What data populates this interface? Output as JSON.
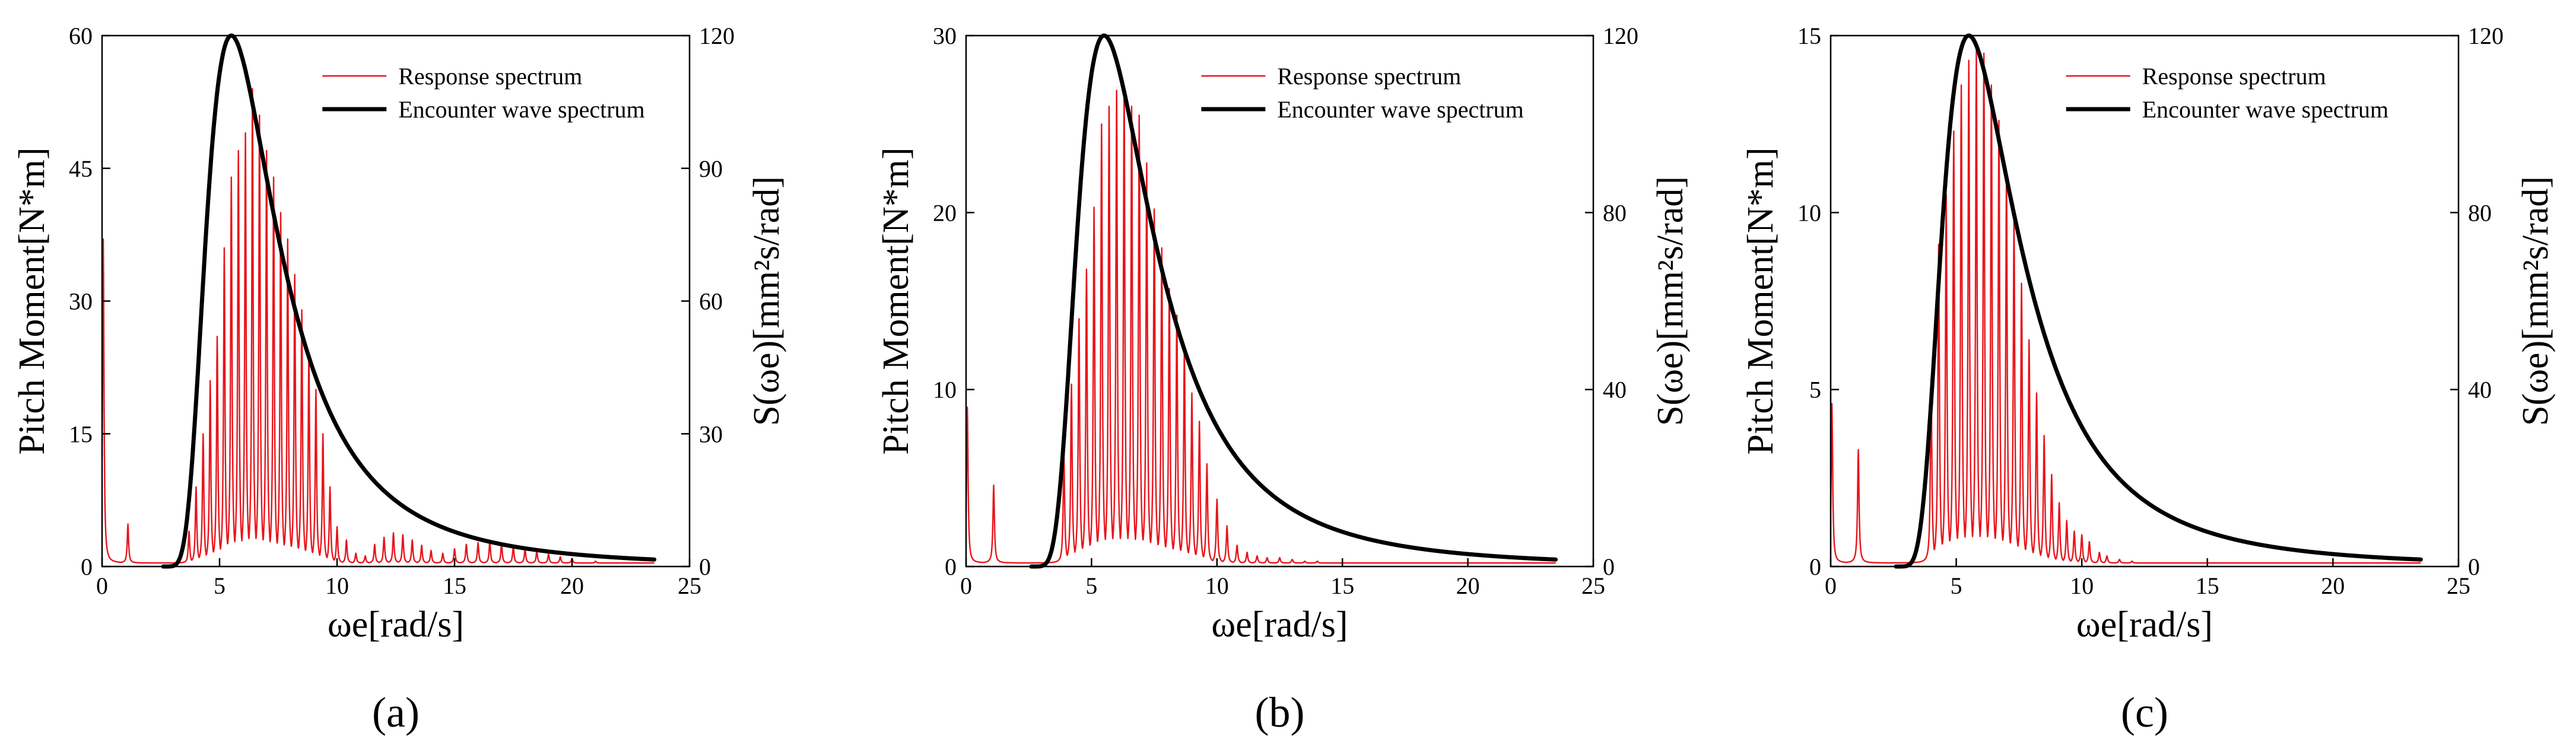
{
  "figure_labels": [
    "(a)",
    "(b)",
    "(c)"
  ],
  "chart_data": [
    {
      "type": "line",
      "panel_label": "(a)",
      "xlabel": "ωe[rad/s]",
      "ylabel": "Pitch Moment[N*m]",
      "y2label": "S(ωe)[mm²s/rad]",
      "xlim": [
        0,
        25
      ],
      "ylim": [
        0,
        60
      ],
      "y2lim": [
        0,
        120
      ],
      "xticks": [
        0,
        5,
        10,
        15,
        20,
        25
      ],
      "yticks": [
        0,
        15,
        30,
        45,
        60
      ],
      "y2ticks": [
        0,
        30,
        60,
        90,
        120
      ],
      "legend": [
        "Response spectrum",
        "Encounter wave spectrum"
      ],
      "legend_position": "top-right",
      "colors": {
        "response": "#e8141b",
        "encounter": "#000000"
      },
      "response_peaks": {
        "x": [
          0.05,
          1.1,
          3.7,
          4.0,
          4.3,
          4.6,
          4.9,
          5.2,
          5.5,
          5.8,
          6.1,
          6.4,
          6.7,
          7.0,
          7.3,
          7.6,
          7.9,
          8.2,
          8.5,
          8.8,
          9.1,
          9.4,
          9.7,
          10.0,
          10.4,
          10.8,
          11.2,
          11.6,
          12.0,
          12.4,
          12.8,
          13.2,
          13.6,
          14.0,
          14.5,
          15.0,
          15.5,
          16.0,
          16.5,
          17.0,
          17.5,
          18.0,
          18.5,
          19.0,
          19.5,
          20.0,
          21.0,
          22.0
        ],
        "y": [
          37,
          4.8,
          4,
          9,
          15,
          21,
          26,
          36,
          44,
          47,
          49,
          54,
          51,
          47,
          44,
          40,
          37,
          33,
          29,
          24,
          20,
          15,
          9,
          4.5,
          3,
          1.5,
          1.2,
          2.5,
          3.3,
          3.8,
          3.6,
          3,
          2.4,
          1.8,
          1.5,
          2,
          2.5,
          2.7,
          2.8,
          2.6,
          2.3,
          2,
          1.7,
          1.4,
          1.1,
          0.9,
          0.6,
          0.4
        ],
        "baseline": 0.4
      },
      "encounter_spectrum": {
        "peak_x": 5.5,
        "peak_y": 120,
        "x_start": 2.6,
        "x_end": 23.5
      }
    },
    {
      "type": "line",
      "panel_label": "(b)",
      "xlabel": "ωe[rad/s]",
      "ylabel": "Pitch Moment[N*m]",
      "y2label": "S(ωe)[mm²s/rad]",
      "xlim": [
        0,
        25
      ],
      "ylim": [
        0,
        30
      ],
      "y2lim": [
        0,
        120
      ],
      "xticks": [
        0,
        5,
        10,
        15,
        20,
        25
      ],
      "yticks": [
        0,
        10,
        20,
        30
      ],
      "y2ticks": [
        0,
        40,
        80,
        120
      ],
      "legend": [
        "Response spectrum",
        "Encounter wave spectrum"
      ],
      "legend_position": "top-right",
      "colors": {
        "response": "#e8141b",
        "encounter": "#000000"
      },
      "response_peaks": {
        "x": [
          0.05,
          1.1,
          3.9,
          4.2,
          4.5,
          4.8,
          5.1,
          5.4,
          5.7,
          6.0,
          6.3,
          6.6,
          6.9,
          7.2,
          7.5,
          7.8,
          8.1,
          8.4,
          8.7,
          9.0,
          9.3,
          9.6,
          10.0,
          10.4,
          10.8,
          11.2,
          11.6,
          12.0,
          12.5,
          13.0,
          13.5,
          14.0,
          15.0
        ],
        "y": [
          9,
          4.6,
          6.3,
          10.3,
          14,
          16.8,
          20.3,
          25,
          26,
          26.9,
          27,
          26,
          25.5,
          22.8,
          20.2,
          18,
          15.7,
          14.2,
          12.2,
          9.8,
          8.2,
          5.8,
          3.8,
          2.3,
          1.2,
          0.8,
          0.6,
          0.5,
          0.5,
          0.4,
          0.3,
          0.3,
          0.2
        ],
        "baseline": 0.2
      },
      "encounter_spectrum": {
        "peak_x": 5.5,
        "peak_y": 120,
        "x_start": 2.6,
        "x_end": 23.5
      }
    },
    {
      "type": "line",
      "panel_label": "(c)",
      "xlabel": "ωe[rad/s]",
      "ylabel": "Pitch Moment[N*m]",
      "y2label": "S(ωe)[mm²s/rad]",
      "xlim": [
        0,
        25
      ],
      "ylim": [
        0,
        15
      ],
      "y2lim": [
        0,
        120
      ],
      "xticks": [
        0,
        5,
        10,
        15,
        20,
        25
      ],
      "yticks": [
        0,
        5,
        10,
        15
      ],
      "y2ticks": [
        0,
        40,
        80,
        120
      ],
      "legend": [
        "Response spectrum",
        "Encounter wave spectrum"
      ],
      "legend_position": "top-right",
      "colors": {
        "response": "#e8141b",
        "encounter": "#000000"
      },
      "response_peaks": {
        "x": [
          0.05,
          1.1,
          4.0,
          4.3,
          4.6,
          4.9,
          5.2,
          5.5,
          5.8,
          6.1,
          6.4,
          6.7,
          7.0,
          7.3,
          7.6,
          7.9,
          8.2,
          8.5,
          8.8,
          9.1,
          9.4,
          9.7,
          10.0,
          10.3,
          10.7,
          11.0,
          11.5,
          12.0
        ],
        "y": [
          4.6,
          3.3,
          5.3,
          9.1,
          10.5,
          12.3,
          13.6,
          14.3,
          14.6,
          14.5,
          13.6,
          12.6,
          11.1,
          9.8,
          8.0,
          6.4,
          4.9,
          3.7,
          2.6,
          1.8,
          1.3,
          1.0,
          0.9,
          0.7,
          0.4,
          0.3,
          0.2,
          0.15
        ],
        "baseline": 0.1
      },
      "encounter_spectrum": {
        "peak_x": 5.5,
        "peak_y": 120,
        "x_start": 2.6,
        "x_end": 23.5
      }
    }
  ]
}
